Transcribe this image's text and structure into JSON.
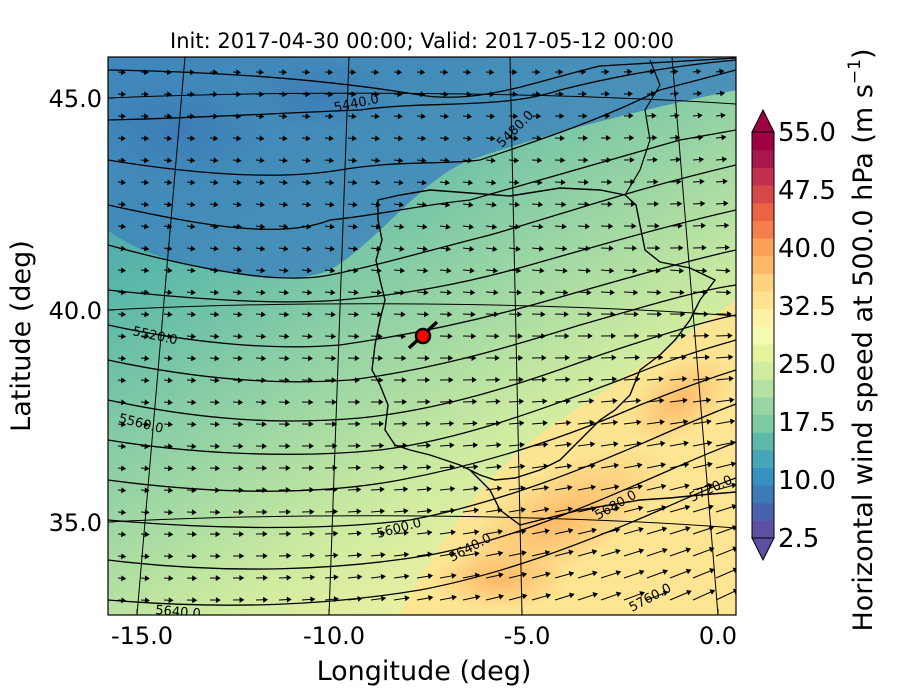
{
  "title": "Init: 2017-04-30 00:00; Valid: 2017-05-12 00:00",
  "xlabel": "Longitude (deg)",
  "ylabel": "Latitude (deg)",
  "x_ticks": [
    "-15.0",
    "-10.0",
    "-5.0",
    "0.0"
  ],
  "y_ticks": [
    "45.0",
    "40.0",
    "35.0"
  ],
  "colorbar": {
    "label": "Horizontal wind speed at 500.0 hPa (m s",
    "label_sup": "−1",
    "label_close": ")",
    "ticks": [
      "2.5",
      "10.0",
      "17.5",
      "25.0",
      "32.5",
      "40.0",
      "47.5",
      "55.0"
    ],
    "colors": [
      "#5e4fa2",
      "#4a62ac",
      "#3c7bb7",
      "#3690c0",
      "#46a6b8",
      "#5cb9a9",
      "#7ccba4",
      "#99d5a4",
      "#b5e1a2",
      "#cfeca0",
      "#e3f49c",
      "#f5fbb2",
      "#fff2a6",
      "#fee391",
      "#fed27e",
      "#fdb867",
      "#fca05a",
      "#f67e4c",
      "#ea6343",
      "#d7484b",
      "#c23050",
      "#a9164e",
      "#9e0142"
    ],
    "extend": "both"
  },
  "contour_labels": [
    "5440.0",
    "5480.0",
    "5520.0",
    "5560.0",
    "5600.0",
    "5640.0",
    "5680.0",
    "5720.0",
    "5640.0",
    "5760.0"
  ],
  "marker": {
    "lat": 39.3,
    "lon": -7.7,
    "color": "#ff0000"
  },
  "map_extent": {
    "lon": [
      -16,
      0.2
    ],
    "lat": [
      32.7,
      46.0
    ]
  }
}
